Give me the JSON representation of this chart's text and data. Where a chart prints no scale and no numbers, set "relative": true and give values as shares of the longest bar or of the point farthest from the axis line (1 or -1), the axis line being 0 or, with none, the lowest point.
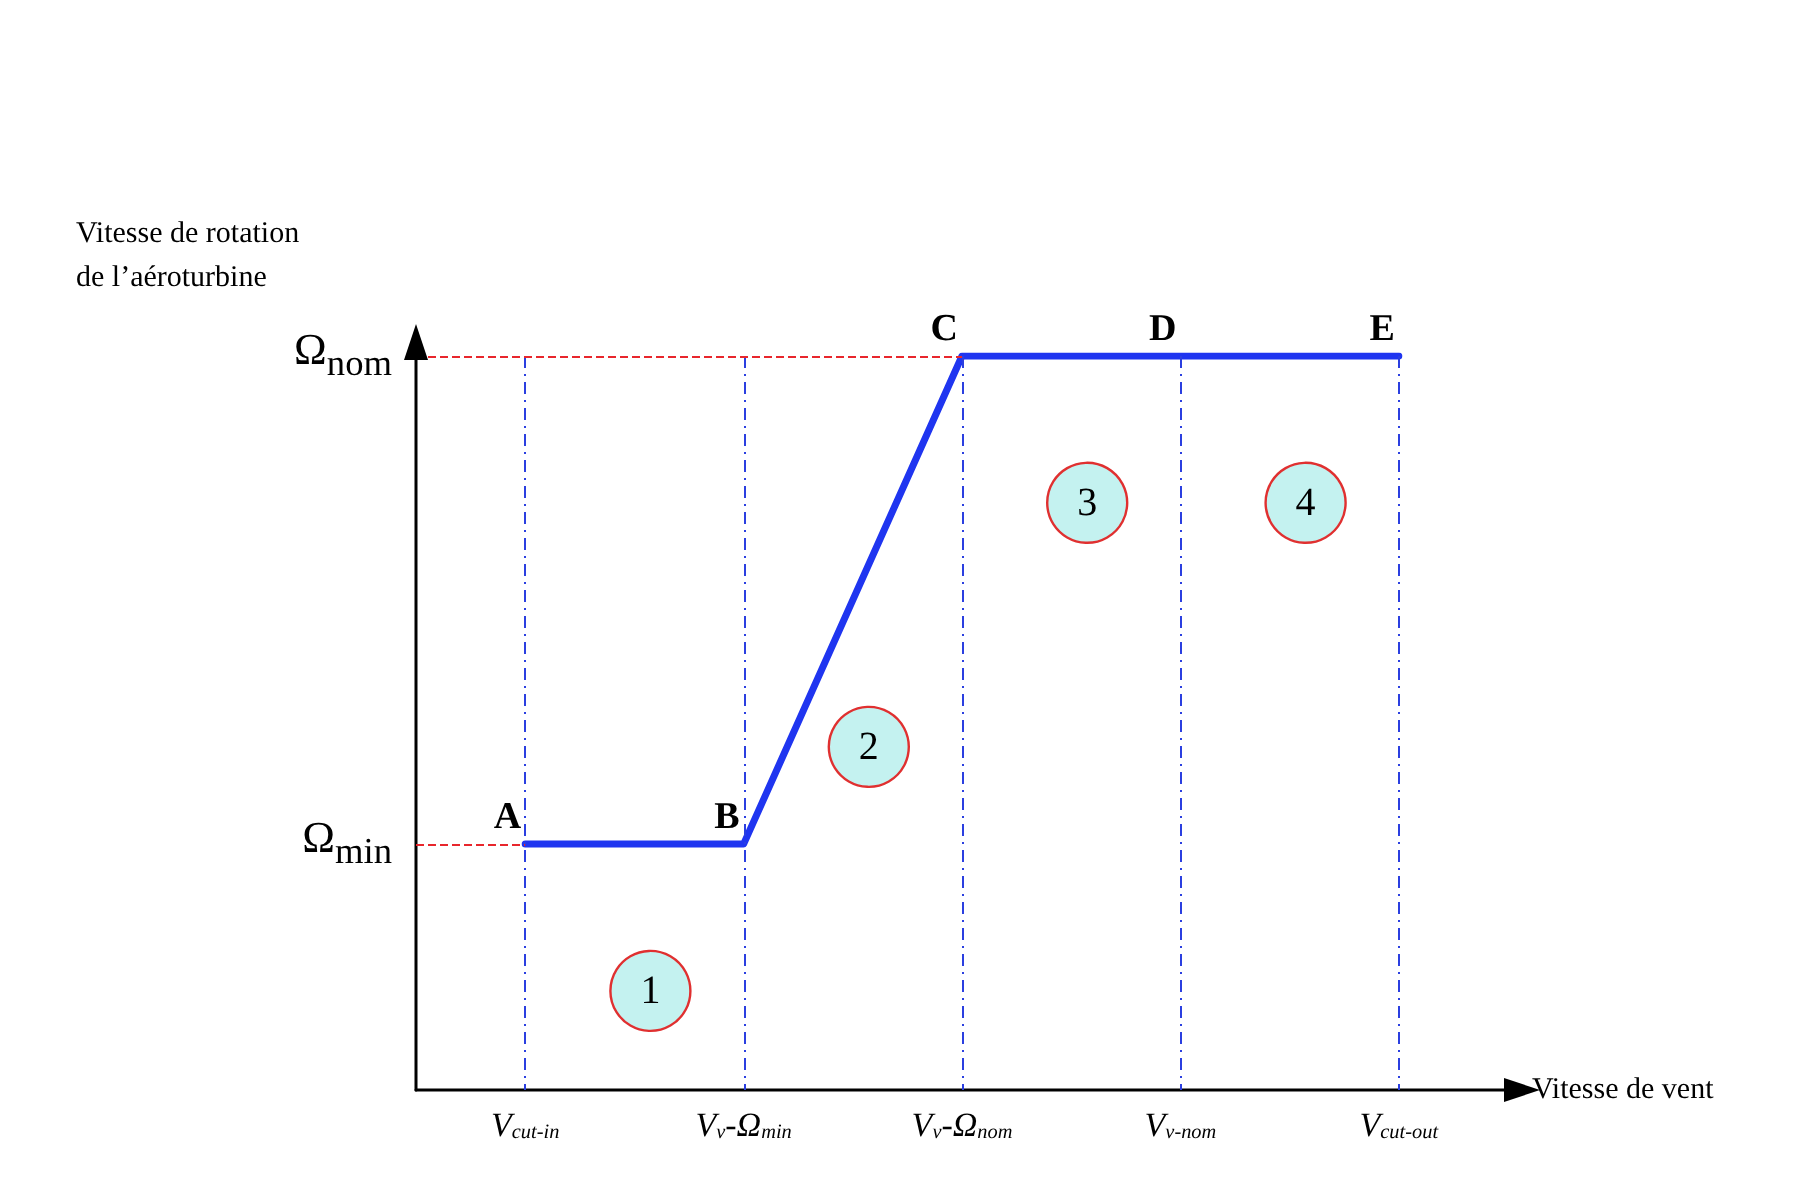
{
  "chart_data": {
    "type": "line",
    "relative": true,
    "xlabel": "Vitesse de vent",
    "ylabel": "Vitesse de rotation\nde l’aéroturbine",
    "categories": [
      "V$_{cut-in}$",
      "V$_{v}$-Ω$_{min}$",
      "V$_{v}$-Ω$_{nom}$",
      "V$_{v-nom}$",
      "V$_{cut-out}$"
    ],
    "series": [
      {
        "color": "#1f35f0",
        "values": [
          0.335,
          0.335,
          1,
          1,
          1
        ]
      }
    ],
    "grid": "x",
    "marker": "none",
    "line_style": "solid",
    "ref_lines": [
      {
        "axis": "y",
        "value": 1,
        "label": "Ω$_{nom}$",
        "color": "#e8262c",
        "line_style": "dashed"
      },
      {
        "axis": "y",
        "value": 0.335,
        "label": "Ω$_{min}$",
        "color": "#e8262c",
        "line_style": "dashed"
      }
    ],
    "annotations": [
      {
        "text": "A",
        "x": "V$_{cut-in}$",
        "y": 0.335
      },
      {
        "text": "B",
        "x": "V$_{v}$-Ω$_{min}$",
        "y": 0.335
      },
      {
        "text": "C",
        "x": "V$_{v}$-Ω$_{nom}$",
        "y": 1
      },
      {
        "text": "D",
        "x": "V$_{v-nom}$",
        "y": 1
      },
      {
        "text": "E",
        "x": "V$_{cut-out}$",
        "y": 1
      },
      "1",
      "2",
      "3",
      "4"
    ]
  }
}
